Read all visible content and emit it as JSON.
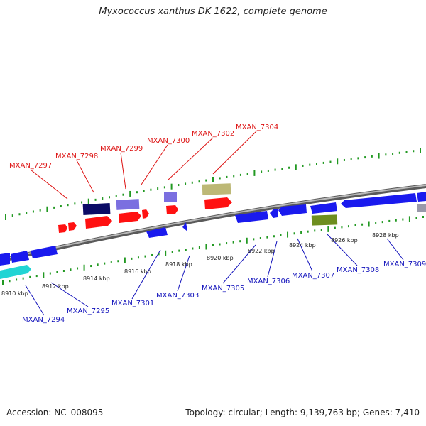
{
  "title": "Myxococcus xanthus DK 1622, complete genome",
  "accession": "Accession: NC_008095",
  "summary": "Topology: circular; Length: 9,139,763 bp; Genes: 7,410",
  "colors": {
    "backbone": "#888888",
    "tick": "#229922",
    "forward_label": "#dd1111",
    "reverse_label": "#1111bb",
    "red_gene": "#ff1111",
    "blue_gene": "#1a1aee",
    "navy_gene": "#0b0b66",
    "purple_gene": "#7b6fe0",
    "khaki_gene": "#bdb876",
    "olive_gene": "#6e8e1f",
    "cyan_gene": "#22d4d4"
  },
  "ruler_labels": [
    "8910 kbp",
    "8912 kbp",
    "8914 kbp",
    "8916 kbp",
    "8918 kbp",
    "8920 kbp",
    "8922 kbp",
    "8924 kbp",
    "8926 kbp",
    "8928 kbp"
  ],
  "forward_gene_labels": [
    "MXAN_7297",
    "MXAN_7298",
    "MXAN_7299",
    "MXAN_7300",
    "MXAN_7302",
    "MXAN_7304"
  ],
  "reverse_gene_labels": [
    "MXAN_7294",
    "MXAN_7295",
    "MXAN_7301",
    "MXAN_7303",
    "MXAN_7305",
    "MXAN_7306",
    "MXAN_7307",
    "MXAN_7308",
    "MXAN_7309"
  ]
}
